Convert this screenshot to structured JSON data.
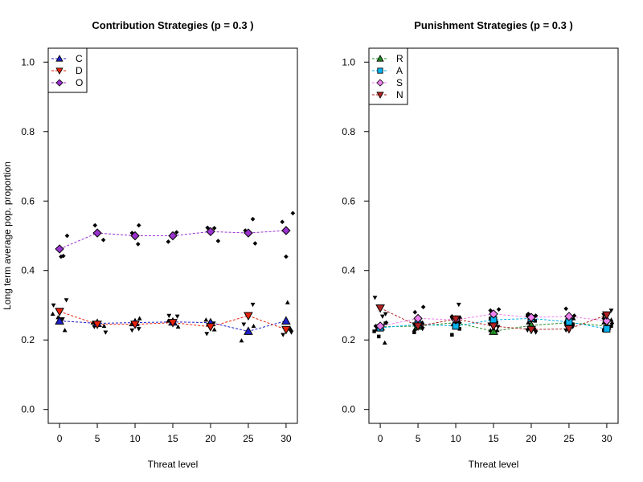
{
  "chart_data": [
    {
      "type": "scatter",
      "title": "Contribution Strategies (p = 0.3 )",
      "xlabel": "Threat level",
      "ylabel": "Long term average pop. proportion",
      "xlim": [
        -1.5,
        31.5
      ],
      "ylim": [
        -0.04,
        1.04
      ],
      "xticks": [
        "0",
        "5",
        "10",
        "15",
        "20",
        "25",
        "30"
      ],
      "yticks": [
        "0.0",
        "0.2",
        "0.4",
        "0.6",
        "0.8",
        "1.0"
      ],
      "legend_position": "top-left",
      "x": [
        0,
        5,
        10,
        15,
        20,
        25,
        30
      ],
      "series": [
        {
          "name": "C",
          "marker": "triangle-up",
          "color": "#1f1fc8",
          "values": [
            0.255,
            0.248,
            0.25,
            0.252,
            0.25,
            0.225,
            0.255
          ],
          "replicates": [
            {
              "x": -0.9,
              "y": 0.275
            },
            {
              "x": 0.7,
              "y": 0.228
            },
            {
              "x": -0.2,
              "y": 0.265
            },
            {
              "x": 4.4,
              "y": 0.25
            },
            {
              "x": 5.9,
              "y": 0.24
            },
            {
              "x": 9.5,
              "y": 0.245
            },
            {
              "x": 10.6,
              "y": 0.262
            },
            {
              "x": 14.4,
              "y": 0.255
            },
            {
              "x": 15.7,
              "y": 0.238
            },
            {
              "x": 19.4,
              "y": 0.258
            },
            {
              "x": 20.5,
              "y": 0.23
            },
            {
              "x": 24.1,
              "y": 0.198
            },
            {
              "x": 25.7,
              "y": 0.24
            },
            {
              "x": 30.2,
              "y": 0.308
            },
            {
              "x": 30.6,
              "y": 0.232
            }
          ]
        },
        {
          "name": "D",
          "marker": "triangle-down",
          "color": "#e8220a",
          "values": [
            0.282,
            0.245,
            0.245,
            0.25,
            0.238,
            0.27,
            0.23
          ],
          "replicates": [
            {
              "x": -0.8,
              "y": 0.3
            },
            {
              "x": 0.9,
              "y": 0.315
            },
            {
              "x": 0.4,
              "y": 0.26
            },
            {
              "x": 4.6,
              "y": 0.238
            },
            {
              "x": 6.1,
              "y": 0.222
            },
            {
              "x": 9.6,
              "y": 0.228
            },
            {
              "x": 10.5,
              "y": 0.232
            },
            {
              "x": 14.5,
              "y": 0.27
            },
            {
              "x": 15.6,
              "y": 0.268
            },
            {
              "x": 19.5,
              "y": 0.218
            },
            {
              "x": 20.4,
              "y": 0.248
            },
            {
              "x": 24.4,
              "y": 0.245
            },
            {
              "x": 25.6,
              "y": 0.302
            },
            {
              "x": 29.6,
              "y": 0.215
            },
            {
              "x": 30.7,
              "y": 0.222
            }
          ]
        },
        {
          "name": "O",
          "marker": "diamond",
          "color": "#9a32cd",
          "values": [
            0.462,
            0.508,
            0.5,
            0.5,
            0.512,
            0.508,
            0.515
          ],
          "replicates": [
            {
              "x": 0.2,
              "y": 0.44
            },
            {
              "x": 0.5,
              "y": 0.442
            },
            {
              "x": 1.0,
              "y": 0.5
            },
            {
              "x": 4.7,
              "y": 0.53
            },
            {
              "x": 5.8,
              "y": 0.488
            },
            {
              "x": 9.6,
              "y": 0.508
            },
            {
              "x": 10.5,
              "y": 0.53
            },
            {
              "x": 10.4,
              "y": 0.476
            },
            {
              "x": 14.4,
              "y": 0.483
            },
            {
              "x": 15.5,
              "y": 0.51
            },
            {
              "x": 19.6,
              "y": 0.523
            },
            {
              "x": 20.5,
              "y": 0.522
            },
            {
              "x": 21.0,
              "y": 0.485
            },
            {
              "x": 24.6,
              "y": 0.515
            },
            {
              "x": 25.6,
              "y": 0.548
            },
            {
              "x": 25.9,
              "y": 0.478
            },
            {
              "x": 29.5,
              "y": 0.54
            },
            {
              "x": 30.0,
              "y": 0.44
            },
            {
              "x": 30.9,
              "y": 0.565
            }
          ]
        }
      ]
    },
    {
      "type": "scatter",
      "title": "Punishment Strategies (p = 0.3 )",
      "xlabel": "Threat level",
      "ylabel": "",
      "xlim": [
        -1.5,
        31.5
      ],
      "ylim": [
        -0.04,
        1.04
      ],
      "xticks": [
        "0",
        "5",
        "10",
        "15",
        "20",
        "25",
        "30"
      ],
      "yticks": [
        "0.0",
        "0.2",
        "0.4",
        "0.6",
        "0.8",
        "1.0"
      ],
      "legend_position": "top-left",
      "x": [
        0,
        5,
        10,
        15,
        20,
        25,
        30
      ],
      "series": [
        {
          "name": "R",
          "marker": "triangle-up",
          "color": "#228b22",
          "values": [
            0.238,
            0.24,
            0.25,
            0.225,
            0.242,
            0.25,
            0.24
          ],
          "replicates": [
            {
              "x": -0.5,
              "y": 0.23
            },
            {
              "x": 0.6,
              "y": 0.192
            },
            {
              "x": 4.6,
              "y": 0.232
            },
            {
              "x": 5.6,
              "y": 0.25
            },
            {
              "x": 9.6,
              "y": 0.245
            },
            {
              "x": 10.6,
              "y": 0.265
            },
            {
              "x": 14.6,
              "y": 0.228
            },
            {
              "x": 15.5,
              "y": 0.228
            },
            {
              "x": 19.6,
              "y": 0.25
            },
            {
              "x": 20.5,
              "y": 0.232
            },
            {
              "x": 24.6,
              "y": 0.255
            },
            {
              "x": 25.6,
              "y": 0.262
            },
            {
              "x": 29.6,
              "y": 0.25
            },
            {
              "x": 30.6,
              "y": 0.258
            }
          ]
        },
        {
          "name": "A",
          "marker": "square",
          "color": "#00b2ee",
          "values": [
            0.235,
            0.245,
            0.24,
            0.258,
            0.262,
            0.252,
            0.232
          ],
          "replicates": [
            {
              "x": -0.8,
              "y": 0.225
            },
            {
              "x": -0.2,
              "y": 0.21
            },
            {
              "x": 0.7,
              "y": 0.248
            },
            {
              "x": 4.5,
              "y": 0.222
            },
            {
              "x": 5.5,
              "y": 0.24
            },
            {
              "x": 9.5,
              "y": 0.215
            },
            {
              "x": 10.5,
              "y": 0.232
            },
            {
              "x": 14.6,
              "y": 0.262
            },
            {
              "x": 15.4,
              "y": 0.25
            },
            {
              "x": 19.5,
              "y": 0.27
            },
            {
              "x": 20.5,
              "y": 0.255
            },
            {
              "x": 24.6,
              "y": 0.248
            },
            {
              "x": 25.5,
              "y": 0.245
            },
            {
              "x": 29.6,
              "y": 0.228
            },
            {
              "x": 30.6,
              "y": 0.24
            }
          ]
        },
        {
          "name": "S",
          "marker": "diamond",
          "color": "#ee82ee",
          "values": [
            0.24,
            0.262,
            0.258,
            0.275,
            0.265,
            0.268,
            0.255
          ],
          "replicates": [
            {
              "x": -0.6,
              "y": 0.24
            },
            {
              "x": 0.8,
              "y": 0.25
            },
            {
              "x": 4.6,
              "y": 0.28
            },
            {
              "x": 5.7,
              "y": 0.295
            },
            {
              "x": 9.5,
              "y": 0.268
            },
            {
              "x": 10.5,
              "y": 0.25
            },
            {
              "x": 14.6,
              "y": 0.285
            },
            {
              "x": 15.7,
              "y": 0.288
            },
            {
              "x": 19.6,
              "y": 0.275
            },
            {
              "x": 20.6,
              "y": 0.27
            },
            {
              "x": 24.6,
              "y": 0.29
            },
            {
              "x": 25.7,
              "y": 0.27
            },
            {
              "x": 29.6,
              "y": 0.262
            },
            {
              "x": 30.7,
              "y": 0.248
            }
          ]
        },
        {
          "name": "N",
          "marker": "triangle-down",
          "color": "#b22222",
          "values": [
            0.292,
            0.24,
            0.26,
            0.24,
            0.23,
            0.232,
            0.272
          ],
          "replicates": [
            {
              "x": -0.7,
              "y": 0.322
            },
            {
              "x": 0.7,
              "y": 0.275
            },
            {
              "x": 0.3,
              "y": 0.268
            },
            {
              "x": 4.5,
              "y": 0.245
            },
            {
              "x": 5.6,
              "y": 0.232
            },
            {
              "x": 9.5,
              "y": 0.262
            },
            {
              "x": 10.4,
              "y": 0.302
            },
            {
              "x": 14.5,
              "y": 0.245
            },
            {
              "x": 15.6,
              "y": 0.238
            },
            {
              "x": 19.5,
              "y": 0.228
            },
            {
              "x": 20.6,
              "y": 0.222
            },
            {
              "x": 24.6,
              "y": 0.228
            },
            {
              "x": 25.5,
              "y": 0.238
            },
            {
              "x": 29.6,
              "y": 0.272
            },
            {
              "x": 30.6,
              "y": 0.285
            }
          ]
        }
      ]
    }
  ]
}
